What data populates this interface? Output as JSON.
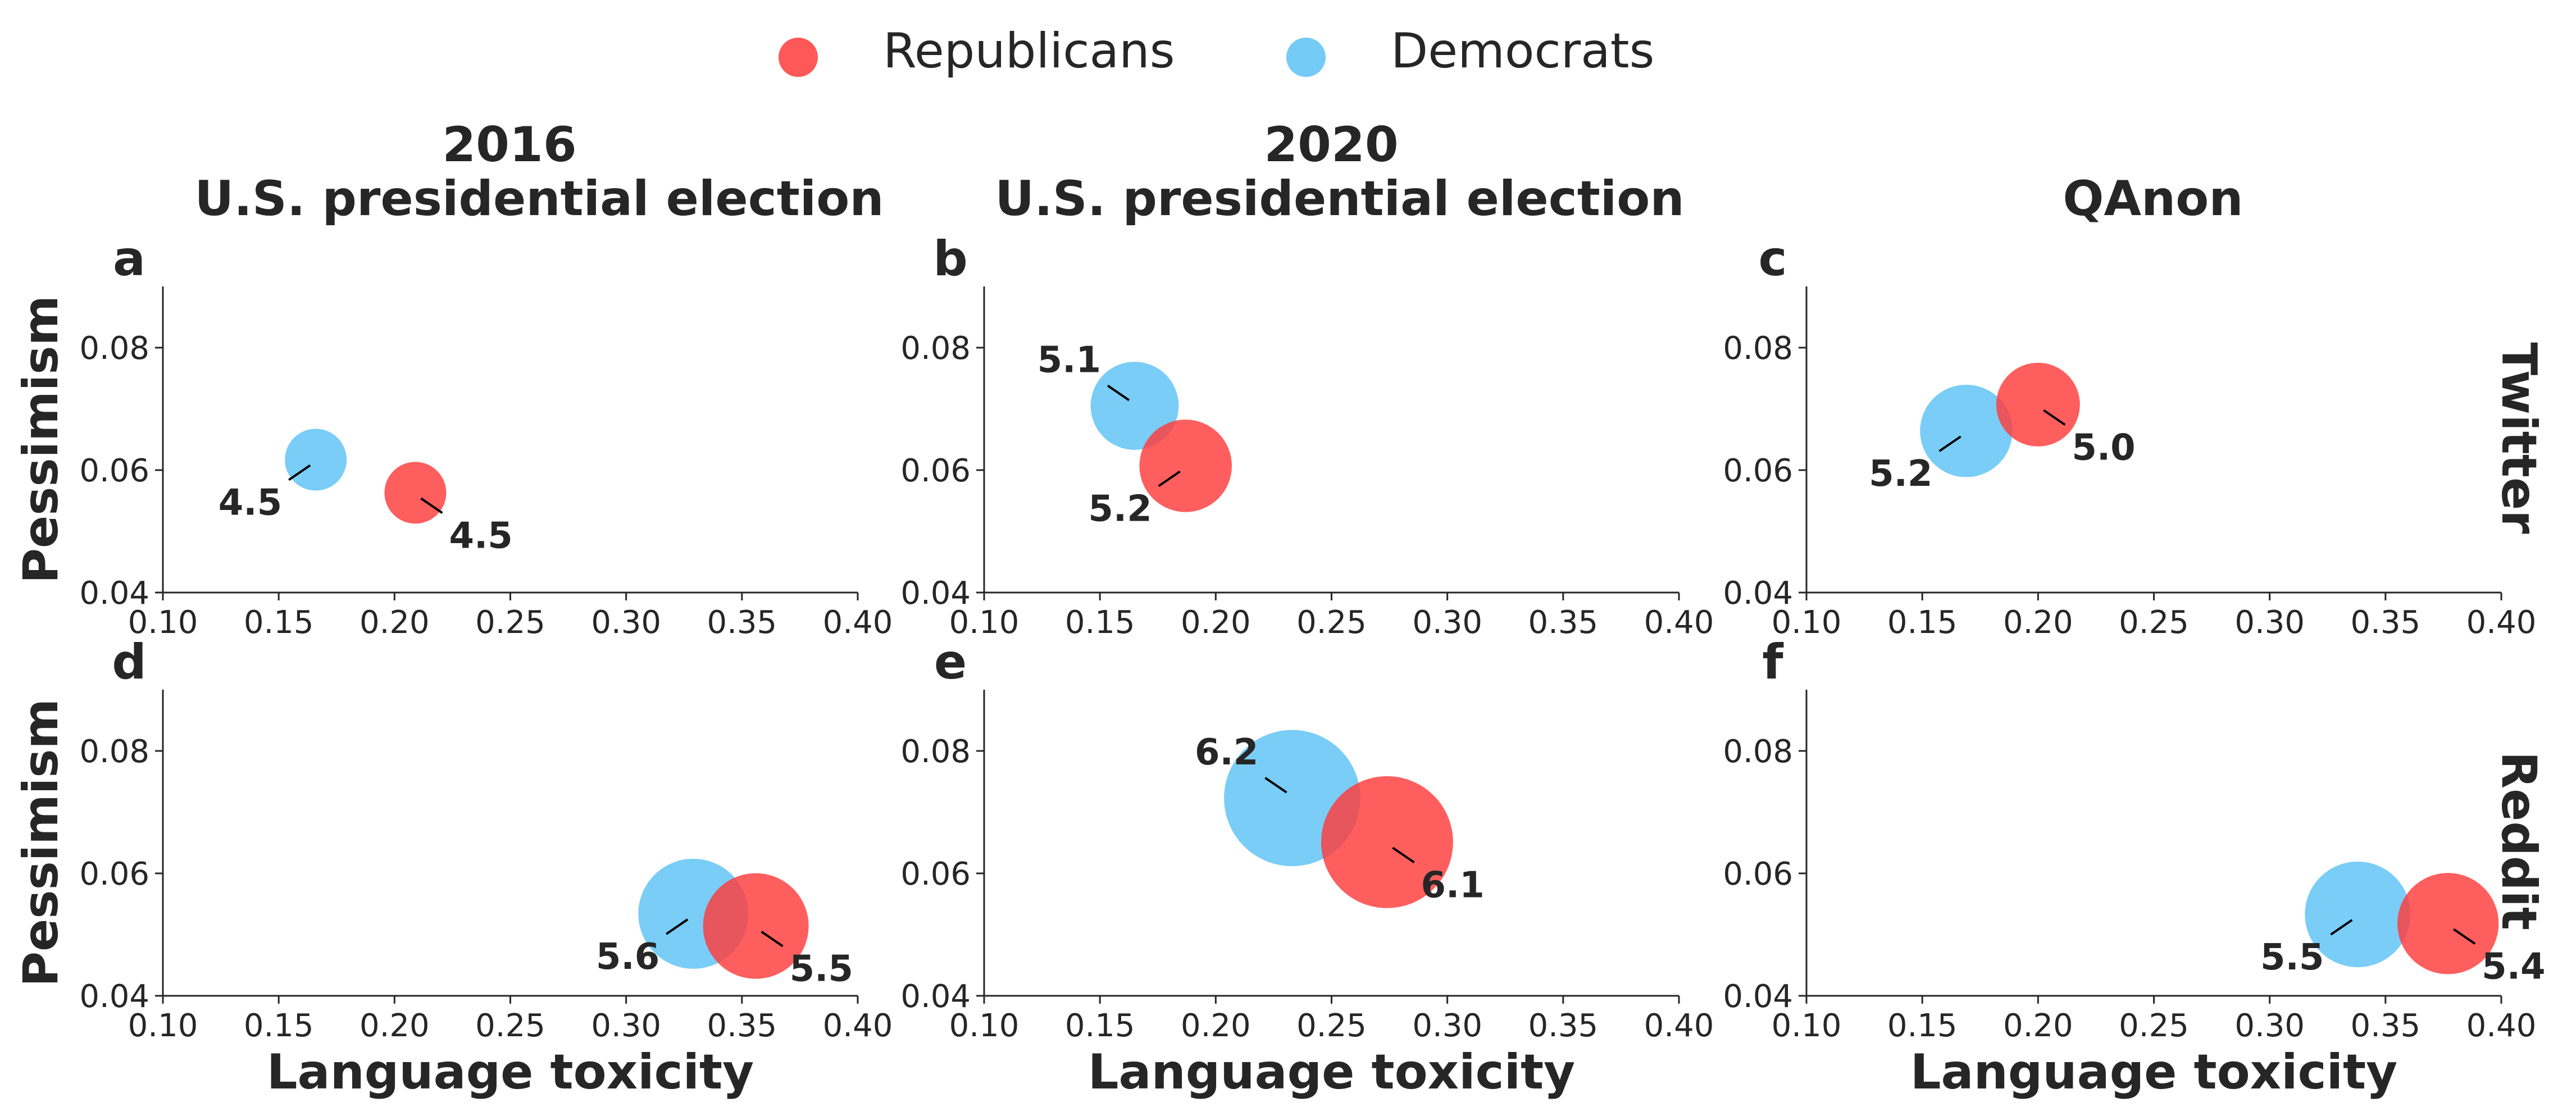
{
  "legend": {
    "placement": "top-center",
    "items": [
      {
        "label": "Republicans",
        "color": "#FF3B3B"
      },
      {
        "label": "Democrats",
        "color": "#5BC2F5"
      }
    ]
  },
  "columns": [
    {
      "title_line1": "2016",
      "title_line2": "U.S. presidential election"
    },
    {
      "title_line1": "2020",
      "title_line2": "U.S. presidential election"
    },
    {
      "title_line1": "",
      "title_line2": "QAnon"
    }
  ],
  "rows": [
    {
      "label": "Twitter"
    },
    {
      "label": "Reddit"
    }
  ],
  "colors": {
    "republicans": "#FF3B3B",
    "democrats": "#5BC2F5",
    "axis": "#262626"
  },
  "chart_data": [
    {
      "type": "scatter",
      "panel": "a",
      "platform": "Twitter",
      "topic": "2016 U.S. presidential election",
      "xlabel": "",
      "ylabel": "Pessimism",
      "xlim": [
        0.1,
        0.4
      ],
      "ylim": [
        0.04,
        0.09
      ],
      "xticks": [
        "0.10",
        "0.15",
        "0.20",
        "0.25",
        "0.30",
        "0.35",
        "0.40"
      ],
      "yticks": [
        "0.04",
        "0.06",
        "0.08"
      ],
      "series": [
        {
          "name": "Democrats",
          "x": 0.166,
          "y": 0.0617,
          "size_label": "4.5",
          "label_pos": "lower-left"
        },
        {
          "name": "Republicans",
          "x": 0.209,
          "y": 0.0563,
          "size_label": "4.5",
          "label_pos": "lower-right"
        }
      ]
    },
    {
      "type": "scatter",
      "panel": "b",
      "platform": "Twitter",
      "topic": "2020 U.S. presidential election",
      "xlabel": "",
      "ylabel": "",
      "xlim": [
        0.1,
        0.4
      ],
      "ylim": [
        0.04,
        0.09
      ],
      "xticks": [
        "0.10",
        "0.15",
        "0.20",
        "0.25",
        "0.30",
        "0.35",
        "0.40"
      ],
      "yticks": [
        "0.04",
        "0.06",
        "0.08"
      ],
      "series": [
        {
          "name": "Democrats",
          "x": 0.165,
          "y": 0.0705,
          "size_label": "5.1",
          "label_pos": "upper-left"
        },
        {
          "name": "Republicans",
          "x": 0.187,
          "y": 0.0607,
          "size_label": "5.2",
          "label_pos": "lower-left"
        }
      ]
    },
    {
      "type": "scatter",
      "panel": "c",
      "platform": "Twitter",
      "topic": "QAnon",
      "xlabel": "",
      "ylabel": "",
      "xlim": [
        0.1,
        0.4
      ],
      "ylim": [
        0.04,
        0.09
      ],
      "xticks": [
        "0.10",
        "0.15",
        "0.20",
        "0.25",
        "0.30",
        "0.35",
        "0.40"
      ],
      "yticks": [
        "0.04",
        "0.06",
        "0.08"
      ],
      "series": [
        {
          "name": "Democrats",
          "x": 0.169,
          "y": 0.0664,
          "size_label": "5.2",
          "label_pos": "lower-left"
        },
        {
          "name": "Republicans",
          "x": 0.2,
          "y": 0.0707,
          "size_label": "5.0",
          "label_pos": "lower-right"
        }
      ]
    },
    {
      "type": "scatter",
      "panel": "d",
      "platform": "Reddit",
      "topic": "2016 U.S. presidential election",
      "xlabel": "Language toxicity",
      "ylabel": "Pessimism",
      "xlim": [
        0.1,
        0.4
      ],
      "ylim": [
        0.04,
        0.09
      ],
      "xticks": [
        "0.10",
        "0.15",
        "0.20",
        "0.25",
        "0.30",
        "0.35",
        "0.40"
      ],
      "yticks": [
        "0.04",
        "0.06",
        "0.08"
      ],
      "series": [
        {
          "name": "Democrats",
          "x": 0.329,
          "y": 0.0534,
          "size_label": "5.6",
          "label_pos": "lower-left"
        },
        {
          "name": "Republicans",
          "x": 0.356,
          "y": 0.0514,
          "size_label": "5.5",
          "label_pos": "lower-right"
        }
      ]
    },
    {
      "type": "scatter",
      "panel": "e",
      "platform": "Reddit",
      "topic": "2020 U.S. presidential election",
      "xlabel": "Language toxicity",
      "ylabel": "",
      "xlim": [
        0.1,
        0.4
      ],
      "ylim": [
        0.04,
        0.09
      ],
      "xticks": [
        "0.10",
        "0.15",
        "0.20",
        "0.25",
        "0.30",
        "0.35",
        "0.40"
      ],
      "yticks": [
        "0.04",
        "0.06",
        "0.08"
      ],
      "series": [
        {
          "name": "Democrats",
          "x": 0.233,
          "y": 0.0723,
          "size_label": "6.2",
          "label_pos": "upper-left"
        },
        {
          "name": "Republicans",
          "x": 0.274,
          "y": 0.0651,
          "size_label": "6.1",
          "label_pos": "lower-right"
        }
      ]
    },
    {
      "type": "scatter",
      "panel": "f",
      "platform": "Reddit",
      "topic": "QAnon",
      "xlabel": "Language toxicity",
      "ylabel": "",
      "xlim": [
        0.1,
        0.4
      ],
      "ylim": [
        0.04,
        0.09
      ],
      "xticks": [
        "0.10",
        "0.15",
        "0.20",
        "0.25",
        "0.30",
        "0.35",
        "0.40"
      ],
      "yticks": [
        "0.04",
        "0.06",
        "0.08"
      ],
      "series": [
        {
          "name": "Democrats",
          "x": 0.338,
          "y": 0.0533,
          "size_label": "5.5",
          "label_pos": "lower-left"
        },
        {
          "name": "Republicans",
          "x": 0.377,
          "y": 0.0518,
          "size_label": "5.4",
          "label_pos": "lower-right"
        }
      ]
    }
  ]
}
